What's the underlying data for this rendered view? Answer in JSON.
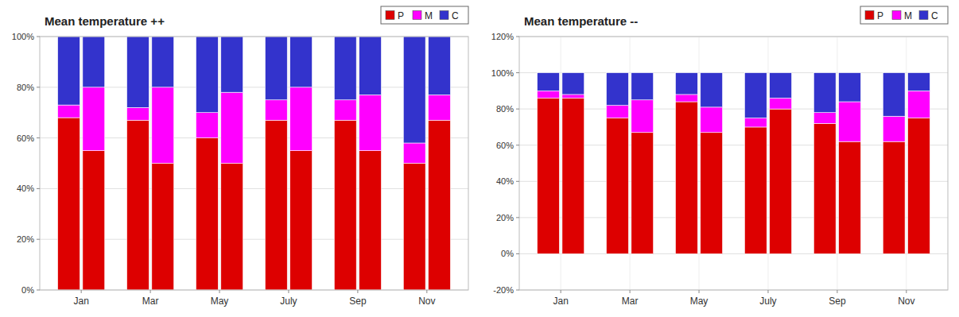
{
  "chart_data": [
    {
      "type": "bar",
      "stacked": true,
      "title": "Mean temperature ++",
      "categories": [
        "Jan",
        null,
        "Mar",
        null,
        "May",
        null,
        "July",
        null,
        "Sep",
        null,
        "Nov",
        null
      ],
      "series": [
        {
          "name": "P",
          "color": "#dd0000",
          "values": [
            68,
            55,
            67,
            50,
            60,
            50,
            67,
            55,
            67,
            55,
            50,
            67
          ]
        },
        {
          "name": "M",
          "color": "#ff00ff",
          "values": [
            5,
            25,
            5,
            30,
            10,
            28,
            8,
            25,
            8,
            22,
            8,
            10
          ]
        },
        {
          "name": "C",
          "color": "#3333cc",
          "values": [
            27,
            20,
            28,
            20,
            30,
            22,
            25,
            20,
            25,
            23,
            42,
            23
          ]
        }
      ],
      "ylim": [
        0,
        100
      ],
      "yticks": [
        {
          "value": 0,
          "label": "0%"
        },
        {
          "value": 20,
          "label": "20%"
        },
        {
          "value": 40,
          "label": "40%"
        },
        {
          "value": 60,
          "label": "60%"
        },
        {
          "value": 80,
          "label": "80%"
        },
        {
          "value": 100,
          "label": "100%"
        }
      ],
      "grid": true,
      "legend": "upper right"
    },
    {
      "type": "bar",
      "stacked": true,
      "title": "Mean temperature --",
      "categories": [
        "Jan",
        null,
        "Mar",
        null,
        "May",
        null,
        "July",
        null,
        "Sep",
        null,
        "Nov",
        null
      ],
      "series": [
        {
          "name": "P",
          "color": "#dd0000",
          "values": [
            86,
            86,
            75,
            67,
            84,
            67,
            70,
            80,
            72,
            62,
            62,
            75
          ]
        },
        {
          "name": "M",
          "color": "#ff00ff",
          "values": [
            4,
            2,
            7,
            18,
            4,
            14,
            5,
            6,
            6,
            22,
            14,
            15
          ]
        },
        {
          "name": "C",
          "color": "#3333cc",
          "values": [
            10,
            12,
            18,
            15,
            12,
            19,
            25,
            14,
            22,
            16,
            24,
            10
          ]
        }
      ],
      "ylim": [
        -20,
        120
      ],
      "yticks": [
        {
          "value": -20,
          "label": "-20%"
        },
        {
          "value": 0,
          "label": "0%"
        },
        {
          "value": 20,
          "label": "20%"
        },
        {
          "value": 40,
          "label": "40%"
        },
        {
          "value": 60,
          "label": "60%"
        },
        {
          "value": 80,
          "label": "80%"
        },
        {
          "value": 100,
          "label": "100%"
        },
        {
          "value": 120,
          "label": "120%"
        }
      ],
      "grid": true,
      "legend": "upper right"
    }
  ]
}
